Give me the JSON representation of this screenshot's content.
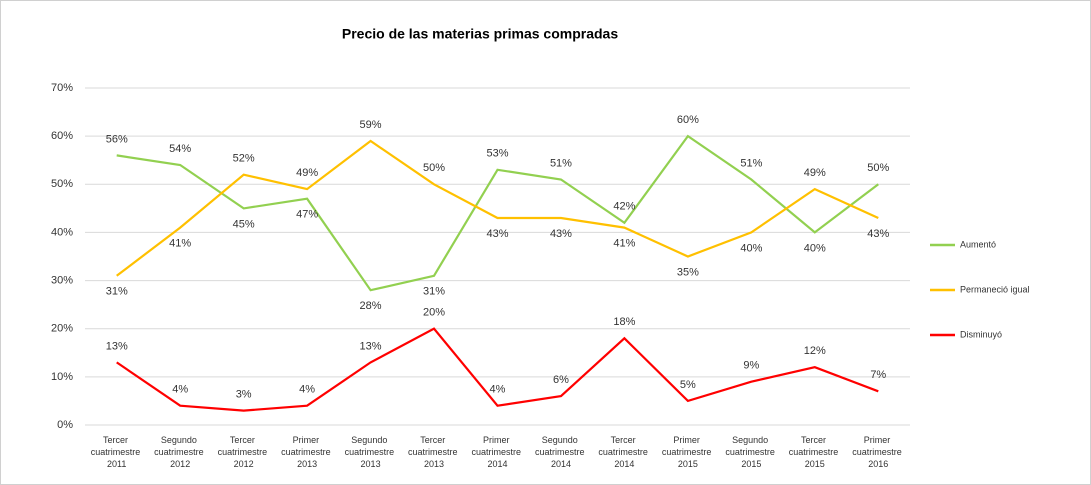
{
  "chart_data": {
    "type": "line",
    "title": "Precio de las materias primas compradas",
    "categories": [
      "Tercer cuatrimestre 2011",
      "Segundo cuatrimestre 2012",
      "Tercer cuatrimestre 2012",
      "Primer cuatrimestre 2013",
      "Segundo cuatrimestre 2013",
      "Tercer cuatrimestre 2013",
      "Primer cuatrimestre 2014",
      "Segundo cuatrimestre 2014",
      "Tercer cuatrimestre 2014",
      "Primer cuatrimestre 2015",
      "Segundo cuatrimestre 2015",
      "Tercer cuatrimestre 2015",
      "Primer cuatrimestre 2016"
    ],
    "series": [
      {
        "name": "Aumentó",
        "color": "#92d050",
        "values": [
          56,
          54,
          45,
          47,
          28,
          31,
          53,
          51,
          42,
          60,
          51,
          40,
          50
        ],
        "value_labels": [
          "56%",
          "54%",
          "45%",
          "47%",
          "28%",
          "31%",
          "53%",
          "51%",
          "42%",
          "60%",
          "51%",
          "40%",
          "50%"
        ]
      },
      {
        "name": "Permaneció igual",
        "color": "#ffc000",
        "values": [
          31,
          41,
          52,
          49,
          59,
          50,
          43,
          43,
          41,
          35,
          40,
          49,
          43
        ],
        "value_labels": [
          "31%",
          "41%",
          "52%",
          "49%",
          "59%",
          "50%",
          "43%",
          "43%",
          "41%",
          "35%",
          "40%",
          "49%",
          "43%"
        ]
      },
      {
        "name": "Disminuyó",
        "color": "#ff0000",
        "values": [
          13,
          4,
          3,
          4,
          13,
          20,
          4,
          6,
          18,
          5,
          9,
          12,
          7
        ],
        "value_labels": [
          "13%",
          "4%",
          "3%",
          "4%",
          "13%",
          "20%",
          "4%",
          "6%",
          "18%",
          "5%",
          "9%",
          "12%",
          "7%"
        ]
      }
    ],
    "ylim": [
      0,
      70
    ],
    "yticks": [
      {
        "value": 0,
        "label": "0%"
      },
      {
        "value": 10,
        "label": "10%"
      },
      {
        "value": 20,
        "label": "20%"
      },
      {
        "value": 30,
        "label": "30%"
      },
      {
        "value": 40,
        "label": "40%"
      },
      {
        "value": 50,
        "label": "50%"
      },
      {
        "value": 60,
        "label": "60%"
      },
      {
        "value": 70,
        "label": "70%"
      }
    ],
    "grid": true,
    "legend": "right"
  }
}
